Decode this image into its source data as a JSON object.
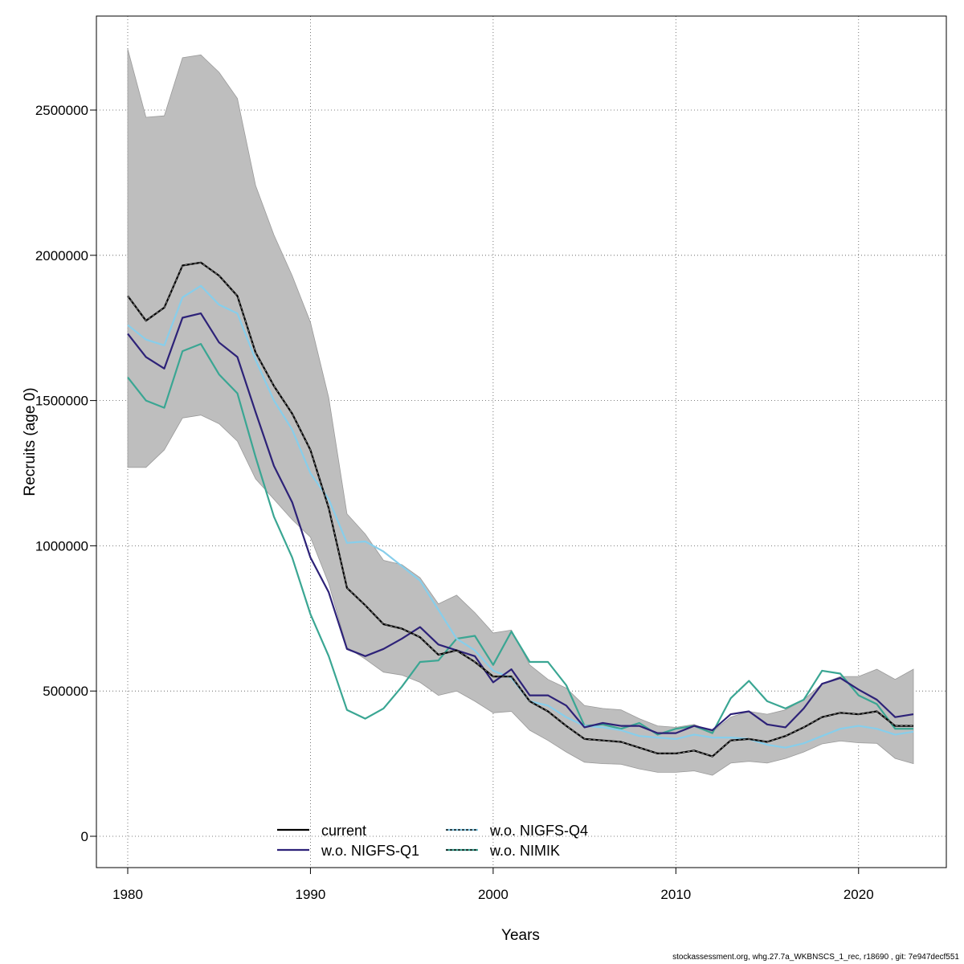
{
  "chart_data": {
    "type": "line",
    "xlabel": "Years",
    "ylabel": "Recruits (age 0)",
    "xlim": [
      1978.3,
      1974.6
    ],
    "ylim": [
      -110000,
      2770000
    ],
    "x_ticks": [
      "1980",
      "1990",
      "2000",
      "2010",
      "2020"
    ],
    "y_ticks": [
      "0",
      "500000",
      "1000000",
      "1500000",
      "2000000",
      "2500000"
    ],
    "grid": true,
    "legend_position": "bottom-center",
    "x": [
      1980,
      1981,
      1982,
      1983,
      1984,
      1985,
      1986,
      1987,
      1988,
      1989,
      1990,
      1991,
      1992,
      1993,
      1994,
      1995,
      1996,
      1997,
      1998,
      1999,
      2000,
      2001,
      2002,
      2003,
      2004,
      2005,
      2006,
      2007,
      2008,
      2009,
      2010,
      2011,
      2012,
      2013,
      2014,
      2015,
      2016,
      2017,
      2018,
      2019,
      2020,
      2021,
      2022,
      2023
    ],
    "band": {
      "color": "#bebebe",
      "upper": [
        2710000,
        2475000,
        2480000,
        2680000,
        2690000,
        2630000,
        2540000,
        2240000,
        2070000,
        1930000,
        1770000,
        1510000,
        1110000,
        1040000,
        950000,
        935000,
        890000,
        800000,
        830000,
        770000,
        700000,
        710000,
        590000,
        540000,
        510000,
        450000,
        440000,
        435000,
        405000,
        380000,
        375000,
        385000,
        360000,
        410000,
        430000,
        420000,
        435000,
        470000,
        525000,
        550000,
        550000,
        575000,
        540000,
        575000
      ],
      "lower": [
        1270000,
        1270000,
        1330000,
        1440000,
        1450000,
        1420000,
        1360000,
        1230000,
        1160000,
        1090000,
        1030000,
        870000,
        650000,
        610000,
        565000,
        555000,
        530000,
        485000,
        500000,
        465000,
        425000,
        430000,
        365000,
        330000,
        290000,
        255000,
        250000,
        248000,
        232000,
        220000,
        220000,
        225000,
        210000,
        252000,
        258000,
        252000,
        268000,
        290000,
        318000,
        328000,
        322000,
        320000,
        268000,
        250000
      ]
    },
    "series": [
      {
        "name": "current",
        "color": "#000000",
        "dashed_overlay": true,
        "values": [
          1860000,
          1775000,
          1820000,
          1965000,
          1975000,
          1930000,
          1860000,
          1665000,
          1550000,
          1455000,
          1330000,
          1130000,
          855000,
          795000,
          730000,
          715000,
          685000,
          625000,
          640000,
          600000,
          550000,
          550000,
          465000,
          430000,
          380000,
          335000,
          330000,
          325000,
          305000,
          285000,
          285000,
          295000,
          275000,
          330000,
          335000,
          325000,
          345000,
          375000,
          410000,
          425000,
          420000,
          430000,
          380000,
          380000
        ]
      },
      {
        "name": "w.o. NIGFS-Q1",
        "color": "#2d2278",
        "values": [
          1730000,
          1650000,
          1610000,
          1785000,
          1800000,
          1700000,
          1650000,
          1460000,
          1275000,
          1150000,
          960000,
          840000,
          645000,
          620000,
          645000,
          680000,
          720000,
          660000,
          640000,
          620000,
          530000,
          575000,
          485000,
          485000,
          450000,
          375000,
          390000,
          380000,
          380000,
          355000,
          355000,
          380000,
          365000,
          420000,
          430000,
          385000,
          375000,
          440000,
          525000,
          545000,
          505000,
          470000,
          410000,
          420000
        ]
      },
      {
        "name": "w.o. NIGFS-Q4",
        "color": "#87ceeb",
        "values": [
          1760000,
          1710000,
          1690000,
          1855000,
          1895000,
          1830000,
          1800000,
          1640000,
          1500000,
          1400000,
          1250000,
          1160000,
          1010000,
          1015000,
          980000,
          930000,
          880000,
          780000,
          680000,
          640000,
          570000,
          545000,
          465000,
          450000,
          410000,
          380000,
          375000,
          365000,
          345000,
          340000,
          335000,
          350000,
          340000,
          340000,
          335000,
          315000,
          305000,
          320000,
          345000,
          370000,
          380000,
          370000,
          350000,
          360000
        ]
      },
      {
        "name": "w.o. NIMIK",
        "color": "#3aa693",
        "values": [
          1580000,
          1500000,
          1475000,
          1670000,
          1695000,
          1590000,
          1525000,
          1305000,
          1100000,
          960000,
          765000,
          620000,
          435000,
          405000,
          440000,
          515000,
          600000,
          605000,
          680000,
          690000,
          590000,
          705000,
          600000,
          600000,
          520000,
          380000,
          385000,
          370000,
          390000,
          350000,
          370000,
          380000,
          355000,
          475000,
          535000,
          465000,
          440000,
          470000,
          570000,
          560000,
          485000,
          455000,
          370000,
          370000
        ]
      }
    ]
  },
  "footer": "stockassessment.org, whg.27.7a_WKBNSCS_1_rec, r18690 , git: 7e947decf551"
}
